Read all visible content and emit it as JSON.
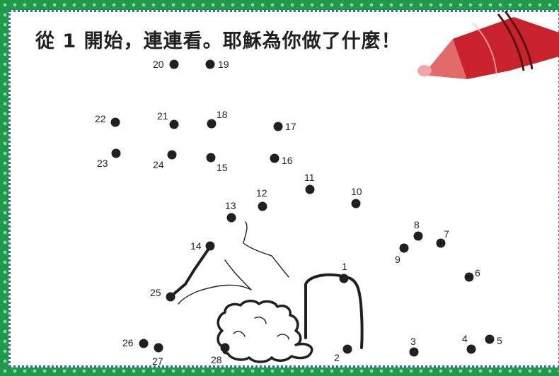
{
  "title": "從 1 開始，連連看。耶穌為你做了什麼！",
  "points": [
    {
      "n": "1",
      "label": "1"
    },
    {
      "n": "2",
      "label": "2"
    },
    {
      "n": "3",
      "label": "3"
    },
    {
      "n": "4",
      "label": "4"
    },
    {
      "n": "5",
      "label": "5"
    },
    {
      "n": "6",
      "label": "6"
    },
    {
      "n": "7",
      "label": "7"
    },
    {
      "n": "8",
      "label": "8"
    },
    {
      "n": "9",
      "label": "9"
    },
    {
      "n": "10",
      "label": "10"
    },
    {
      "n": "11",
      "label": "11"
    },
    {
      "n": "12",
      "label": "12"
    },
    {
      "n": "13",
      "label": "13"
    },
    {
      "n": "14",
      "label": "14"
    },
    {
      "n": "15",
      "label": "15"
    },
    {
      "n": "16",
      "label": "16"
    },
    {
      "n": "17",
      "label": "17"
    },
    {
      "n": "18",
      "label": "18"
    },
    {
      "n": "19",
      "label": "19"
    },
    {
      "n": "20",
      "label": "20"
    },
    {
      "n": "21",
      "label": "21"
    },
    {
      "n": "22",
      "label": "22"
    },
    {
      "n": "23",
      "label": "23"
    },
    {
      "n": "24",
      "label": "24"
    },
    {
      "n": "25",
      "label": "25"
    },
    {
      "n": "26",
      "label": "26"
    },
    {
      "n": "27",
      "label": "27"
    },
    {
      "n": "28",
      "label": "28"
    }
  ],
  "colors": {
    "crayon": "#c8232c",
    "crayon_tip": "#e26a6a",
    "dot": "#231f20",
    "frame": "#1f9a4a",
    "paper_border": "#2f6fb2"
  }
}
